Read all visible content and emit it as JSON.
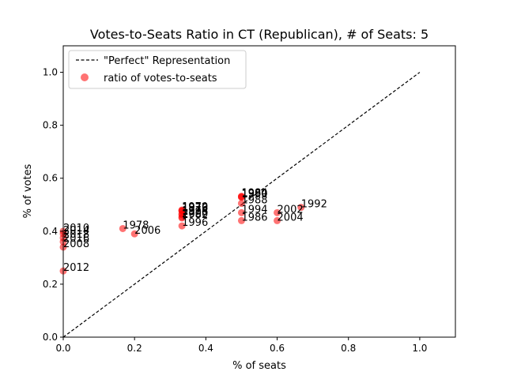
{
  "chart_data": {
    "type": "scatter",
    "title": "Votes-to-Seats Ratio in CT (Republican), # of Seats: 5",
    "xlabel": "% of seats",
    "ylabel": "% of votes",
    "xlim": [
      0,
      1.1
    ],
    "ylim": [
      0,
      1.1
    ],
    "x_ticks": [
      "0.0",
      "0.2",
      "0.4",
      "0.6",
      "0.8",
      "1.0"
    ],
    "y_ticks": [
      "0.0",
      "0.2",
      "0.4",
      "0.6",
      "0.8",
      "1.0"
    ],
    "grid": false,
    "legend": {
      "placement": "upper-left",
      "entries": [
        "\"Perfect\" Representation",
        "ratio of votes-to-seats"
      ]
    },
    "reference_line": {
      "name": "\"Perfect\" Representation",
      "x": [
        0,
        1
      ],
      "y": [
        0,
        1
      ],
      "style": "dashed",
      "color": "#000000"
    },
    "series": [
      {
        "name": "ratio of votes-to-seats",
        "color": "#ff0000",
        "opacity": 0.55,
        "points": [
          {
            "label": "1970",
            "x": 0.333,
            "y": 0.48
          },
          {
            "label": "1972",
            "x": 0.333,
            "y": 0.478
          },
          {
            "label": "1974",
            "x": 0.333,
            "y": 0.465
          },
          {
            "label": "1976",
            "x": 0.333,
            "y": 0.476
          },
          {
            "label": "1978",
            "x": 0.167,
            "y": 0.41
          },
          {
            "label": "1980",
            "x": 0.5,
            "y": 0.53
          },
          {
            "label": "1982",
            "x": 0.333,
            "y": 0.45
          },
          {
            "label": "1984",
            "x": 0.5,
            "y": 0.532
          },
          {
            "label": "1986",
            "x": 0.5,
            "y": 0.44
          },
          {
            "label": "1988",
            "x": 0.5,
            "y": 0.505
          },
          {
            "label": "1990",
            "x": 0.5,
            "y": 0.528
          },
          {
            "label": "1992",
            "x": 0.667,
            "y": 0.49
          },
          {
            "label": "1994",
            "x": 0.5,
            "y": 0.47
          },
          {
            "label": "1996",
            "x": 0.333,
            "y": 0.42
          },
          {
            "label": "1998",
            "x": 0.333,
            "y": 0.462
          },
          {
            "label": "2000",
            "x": 0.333,
            "y": 0.453
          },
          {
            "label": "2002",
            "x": 0.6,
            "y": 0.47
          },
          {
            "label": "2004",
            "x": 0.6,
            "y": 0.44
          },
          {
            "label": "2006",
            "x": 0.2,
            "y": 0.39
          },
          {
            "label": "2008",
            "x": 0.0,
            "y": 0.34
          },
          {
            "label": "2010",
            "x": 0.0,
            "y": 0.4
          },
          {
            "label": "2012",
            "x": 0.0,
            "y": 0.25
          },
          {
            "label": "2014",
            "x": 0.0,
            "y": 0.39
          },
          {
            "label": "2016",
            "x": 0.0,
            "y": 0.36
          },
          {
            "label": "2018",
            "x": 0.0,
            "y": 0.375
          }
        ]
      }
    ]
  }
}
